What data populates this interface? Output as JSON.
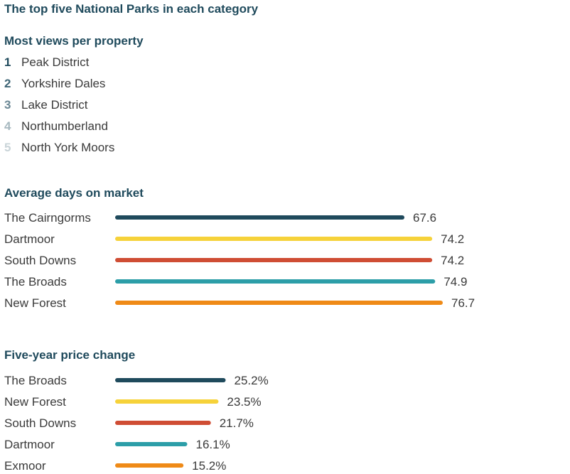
{
  "title": "The top five National Parks in each category",
  "views": {
    "heading": "Most views per property",
    "items": [
      {
        "rank": "1",
        "name": "Peak District",
        "color": "#1f4a5c"
      },
      {
        "rank": "2",
        "name": "Yorkshire Dales",
        "color": "#3f6676"
      },
      {
        "rank": "3",
        "name": "Lake District",
        "color": "#6a8794"
      },
      {
        "rank": "4",
        "name": "Northumberland",
        "color": "#a6b8bf"
      },
      {
        "rank": "5",
        "name": "North York Moors",
        "color": "#c9d4d8"
      }
    ]
  },
  "chart_data": [
    {
      "type": "bar",
      "orientation": "horizontal",
      "title": "Average days on market",
      "categories": [
        "The Cairngorms",
        "Dartmoor",
        "South Downs",
        "The Broads",
        "New Forest"
      ],
      "values": [
        67.6,
        74.2,
        74.2,
        74.9,
        76.7
      ],
      "value_labels": [
        "67.6",
        "74.2",
        "74.2",
        "74.9",
        "76.7"
      ],
      "xlim": [
        0,
        76.7
      ],
      "colors": [
        "#1f4a5c",
        "#f6d23a",
        "#cf4d34",
        "#2c9ea8",
        "#ef8a17"
      ],
      "grid": false
    },
    {
      "type": "bar",
      "orientation": "horizontal",
      "title": "Five-year price change",
      "categories": [
        "The Broads",
        "New Forest",
        "South Downs",
        "Dartmoor",
        "Exmoor"
      ],
      "values": [
        25.2,
        23.5,
        21.7,
        16.1,
        15.2
      ],
      "value_labels": [
        "25.2%",
        "23.5%",
        "21.7%",
        "16.1%",
        "15.2%"
      ],
      "xlim": [
        0,
        76.7
      ],
      "colors": [
        "#1f4a5c",
        "#f6d23a",
        "#cf4d34",
        "#2c9ea8",
        "#ef8a17"
      ],
      "grid": false
    }
  ]
}
